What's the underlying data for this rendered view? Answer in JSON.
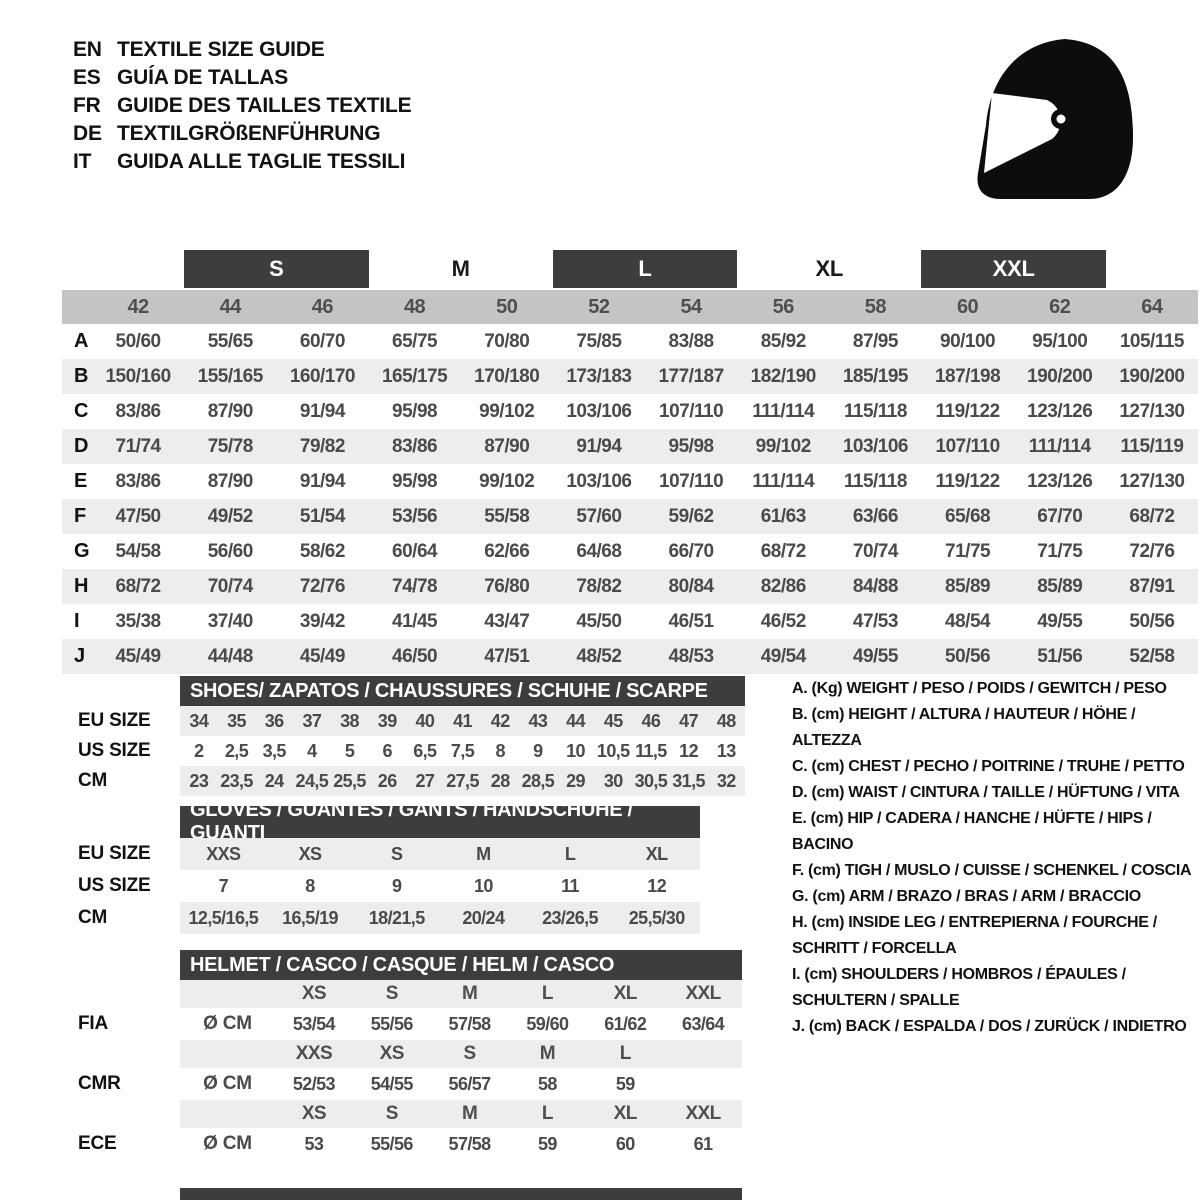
{
  "languages": [
    {
      "code": "EN",
      "title": "TEXTILE SIZE GUIDE"
    },
    {
      "code": "ES",
      "title": "GUÍA DE TALLAS"
    },
    {
      "code": "FR",
      "title": "GUIDE DES TAILLES TEXTILE"
    },
    {
      "code": "DE",
      "title": "TEXTILGRÖßENFÜHRUNG"
    },
    {
      "code": "IT",
      "title": "GUIDA ALLE TAGLIE TESSILI"
    }
  ],
  "icons": {
    "top_right": "racing-helmet-icon"
  },
  "colors": {
    "dark_bar": "#3d3d3d",
    "size_band": "#c4c4c4",
    "row_stripe": "#ededed",
    "value_text": "#4a4a4a",
    "text": "#111111"
  },
  "main_table": {
    "groups": [
      {
        "label": "S",
        "dark": true
      },
      {
        "label": "M",
        "dark": false
      },
      {
        "label": "L",
        "dark": true
      },
      {
        "label": "XL",
        "dark": false
      },
      {
        "label": "XXL",
        "dark": true
      }
    ],
    "sizes": [
      "42",
      "44",
      "46",
      "48",
      "50",
      "52",
      "54",
      "56",
      "58",
      "60",
      "62",
      "64"
    ],
    "rows": [
      {
        "label": "A",
        "values": [
          "50/60",
          "55/65",
          "60/70",
          "65/75",
          "70/80",
          "75/85",
          "83/88",
          "85/92",
          "87/95",
          "90/100",
          "95/100",
          "105/115"
        ]
      },
      {
        "label": "B",
        "values": [
          "150/160",
          "155/165",
          "160/170",
          "165/175",
          "170/180",
          "173/183",
          "177/187",
          "182/190",
          "185/195",
          "187/198",
          "190/200",
          "190/200"
        ]
      },
      {
        "label": "C",
        "values": [
          "83/86",
          "87/90",
          "91/94",
          "95/98",
          "99/102",
          "103/106",
          "107/110",
          "111/114",
          "115/118",
          "119/122",
          "123/126",
          "127/130"
        ]
      },
      {
        "label": "D",
        "values": [
          "71/74",
          "75/78",
          "79/82",
          "83/86",
          "87/90",
          "91/94",
          "95/98",
          "99/102",
          "103/106",
          "107/110",
          "111/114",
          "115/119"
        ]
      },
      {
        "label": "E",
        "values": [
          "83/86",
          "87/90",
          "91/94",
          "95/98",
          "99/102",
          "103/106",
          "107/110",
          "111/114",
          "115/118",
          "119/122",
          "123/126",
          "127/130"
        ]
      },
      {
        "label": "F",
        "values": [
          "47/50",
          "49/52",
          "51/54",
          "53/56",
          "55/58",
          "57/60",
          "59/62",
          "61/63",
          "63/66",
          "65/68",
          "67/70",
          "68/72"
        ]
      },
      {
        "label": "G",
        "values": [
          "54/58",
          "56/60",
          "58/62",
          "60/64",
          "62/66",
          "64/68",
          "66/70",
          "68/72",
          "70/74",
          "71/75",
          "71/75",
          "72/76"
        ]
      },
      {
        "label": "H",
        "values": [
          "68/72",
          "70/74",
          "72/76",
          "74/78",
          "76/80",
          "78/82",
          "80/84",
          "82/86",
          "84/88",
          "85/89",
          "85/89",
          "87/91"
        ]
      },
      {
        "label": "I",
        "values": [
          "35/38",
          "37/40",
          "39/42",
          "41/45",
          "43/47",
          "45/50",
          "46/51",
          "46/52",
          "47/53",
          "48/54",
          "49/55",
          "50/56"
        ]
      },
      {
        "label": "J",
        "values": [
          "45/49",
          "44/48",
          "45/49",
          "46/50",
          "47/51",
          "48/52",
          "48/53",
          "49/54",
          "49/55",
          "50/56",
          "51/56",
          "52/58"
        ]
      }
    ]
  },
  "shoes": {
    "title": "SHOES/ ZAPATOS / CHAUSSURES / SCHUHE / SCARPE",
    "rows": [
      {
        "label": "EU SIZE",
        "shaded": true,
        "values": [
          "34",
          "35",
          "36",
          "37",
          "38",
          "39",
          "40",
          "41",
          "42",
          "43",
          "44",
          "45",
          "46",
          "47",
          "48"
        ]
      },
      {
        "label": "US SIZE",
        "shaded": false,
        "values": [
          "2",
          "2,5",
          "3,5",
          "4",
          "5",
          "6",
          "6,5",
          "7,5",
          "8",
          "9",
          "10",
          "10,5",
          "11,5",
          "12",
          "13"
        ]
      },
      {
        "label": "CM",
        "shaded": true,
        "values": [
          "23",
          "23,5",
          "24",
          "24,5",
          "25,5",
          "26",
          "27",
          "27,5",
          "28",
          "28,5",
          "29",
          "30",
          "30,5",
          "31,5",
          "32"
        ]
      }
    ]
  },
  "gloves": {
    "title": "GLOVES / GUANTES / GANTS / HANDSCHUHE / GUANTI",
    "rows": [
      {
        "label": "EU SIZE",
        "shaded": true,
        "values": [
          "XXS",
          "XS",
          "S",
          "M",
          "L",
          "XL"
        ]
      },
      {
        "label": "US SIZE",
        "shaded": false,
        "values": [
          "7",
          "8",
          "9",
          "10",
          "11",
          "12"
        ]
      },
      {
        "label": "CM",
        "shaded": true,
        "values": [
          "12,5/16,5",
          "16,5/19",
          "18/21,5",
          "20/24",
          "23/26,5",
          "25,5/30"
        ]
      }
    ]
  },
  "helmet": {
    "title": "HELMET / CASCO / CASQUE / HELM / CASCO",
    "rows": [
      {
        "type": "sizes",
        "label": "",
        "unit": "",
        "cells": [
          "XS",
          "S",
          "M",
          "L",
          "XL",
          "XXL"
        ]
      },
      {
        "type": "values",
        "label": "FIA",
        "unit": "Ø CM",
        "cells": [
          "53/54",
          "55/56",
          "57/58",
          "59/60",
          "61/62",
          "63/64"
        ]
      },
      {
        "type": "sizes",
        "label": "",
        "unit": "",
        "cells": [
          "XXS",
          "XS",
          "S",
          "M",
          "L",
          ""
        ]
      },
      {
        "type": "values",
        "label": "CMR",
        "unit": "Ø CM",
        "cells": [
          "52/53",
          "54/55",
          "56/57",
          "58",
          "59",
          ""
        ]
      },
      {
        "type": "sizes",
        "label": "",
        "unit": "",
        "cells": [
          "XS",
          "S",
          "M",
          "L",
          "XL",
          "XXL"
        ]
      },
      {
        "type": "values",
        "label": "ECE",
        "unit": "Ø CM",
        "cells": [
          "53",
          "55/56",
          "57/58",
          "59",
          "60",
          "61"
        ]
      }
    ]
  },
  "legend": [
    "A. (Kg) WEIGHT / PESO / POIDS / GEWITCH / PESO",
    "B. (cm) HEIGHT / ALTURA / HAUTEUR / HÖHE / ALTEZZA",
    "C. (cm) CHEST / PECHO / POITRINE / TRUHE / PETTO",
    "D. (cm) WAIST / CINTURA / TAILLE / HÜFTUNG / VITA",
    "E. (cm) HIP / CADERA / HANCHE / HÜFTE / HIPS /  BACINO",
    "F. (cm) TIGH / MUSLO / CUISSE / SCHENKEL / COSCIA",
    "G. (cm) ARM  / BRAZO / BRAS / ARM / BRACCIO",
    "H. (cm) INSIDE LEG / ENTREPIERNA / FOURCHE / SCHRITT / FORCELLA",
    "I.  (cm) SHOULDERS / HOMBROS / ÉPAULES / SCHULTERN / SPALLE",
    "J. (cm) BACK / ESPALDA / DOS / ZURÜCK / INDIETRO"
  ]
}
